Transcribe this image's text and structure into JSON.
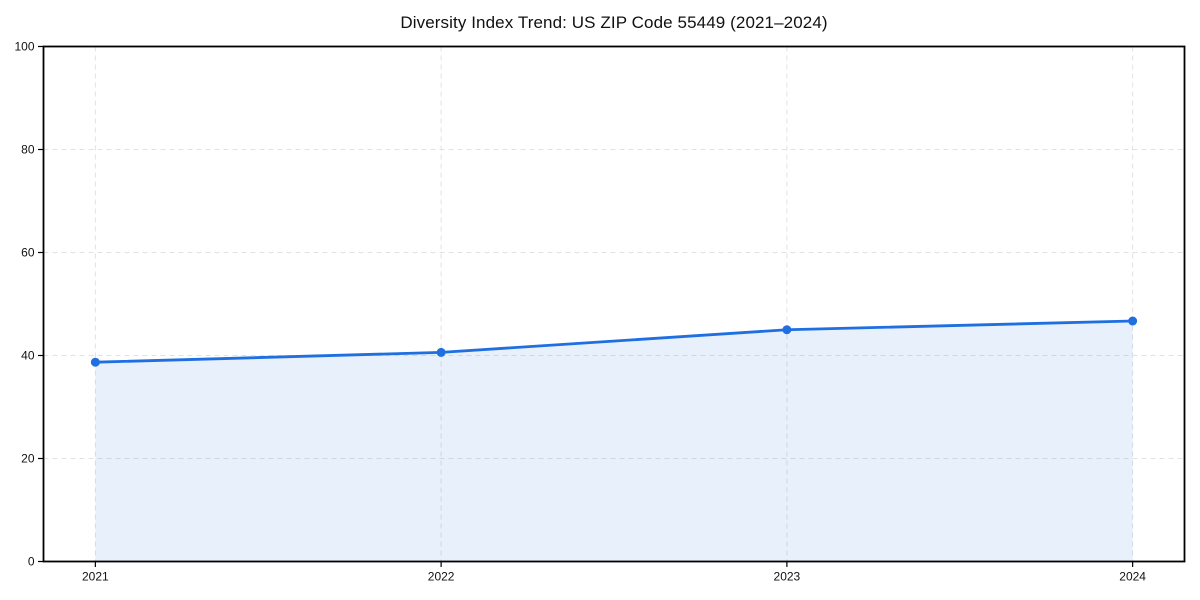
{
  "chart_data": {
    "type": "area",
    "title": "Diversity Index Trend: US ZIP Code 55449 (2021–2024)",
    "categories": [
      "2021",
      "2022",
      "2023",
      "2024"
    ],
    "series": [
      {
        "name": "Diversity Index",
        "values": [
          38.7,
          40.6,
          45.0,
          46.7
        ]
      }
    ],
    "xlabel": "",
    "ylabel": "",
    "ylim": [
      0,
      100
    ],
    "yticks": [
      0,
      20,
      40,
      60,
      80,
      100
    ],
    "x_margin_frac": 0.05,
    "grid": true,
    "grid_style": "dashed",
    "legend_position": "none",
    "colors": {
      "line": "#1f6fe0",
      "marker": "#1f6fe0",
      "fill": "rgba(31, 111, 224, 0.10)",
      "grid": "#e2e2e2",
      "spine": "#000000",
      "text": "#111111",
      "background": "#ffffff"
    }
  }
}
